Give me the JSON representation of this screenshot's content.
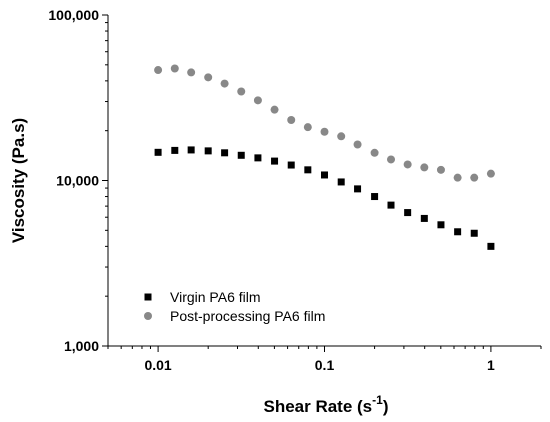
{
  "chart_data": {
    "type": "scatter",
    "xscale": "log",
    "yscale": "log",
    "xlim": [
      0.005,
      2
    ],
    "ylim": [
      1000,
      100000
    ],
    "xticks": [
      0.01,
      0.1,
      1
    ],
    "xtick_labels": [
      "0.01",
      "0.1",
      "1"
    ],
    "yticks": [
      1000,
      10000,
      100000
    ],
    "ytick_labels": [
      "1,000",
      "10,000",
      "100,000"
    ],
    "xlabel": "Shear Rate (s",
    "xlabel_sup": "-1",
    "xlabel_close": ")",
    "ylabel": "Viscosity (Pa.s)",
    "grid": false,
    "legend_position": "bottom-left",
    "series": [
      {
        "name": "Virgin PA6 film",
        "marker": "square",
        "color": "#000000",
        "x": [
          0.01,
          0.0126,
          0.0158,
          0.02,
          0.0251,
          0.0316,
          0.0398,
          0.0501,
          0.0631,
          0.0794,
          0.1,
          0.126,
          0.158,
          0.2,
          0.251,
          0.316,
          0.398,
          0.501,
          0.631,
          0.794,
          1.0
        ],
        "y": [
          14800,
          15200,
          15300,
          15100,
          14700,
          14200,
          13700,
          13100,
          12400,
          11600,
          10800,
          9800,
          8900,
          8000,
          7100,
          6400,
          5900,
          5400,
          4900,
          4800,
          4000
        ]
      },
      {
        "name": "Post-processing PA6 film",
        "marker": "circle",
        "color": "#888888",
        "x": [
          0.01,
          0.0126,
          0.0158,
          0.02,
          0.0251,
          0.0316,
          0.0398,
          0.0501,
          0.0631,
          0.0794,
          0.1,
          0.126,
          0.158,
          0.2,
          0.251,
          0.316,
          0.398,
          0.501,
          0.631,
          0.794,
          1.0
        ],
        "y": [
          46500,
          47500,
          45000,
          42000,
          38500,
          34500,
          30500,
          26800,
          23200,
          21000,
          19700,
          18500,
          16500,
          14700,
          13400,
          12500,
          12000,
          11600,
          10400,
          10400,
          11000
        ]
      }
    ]
  }
}
